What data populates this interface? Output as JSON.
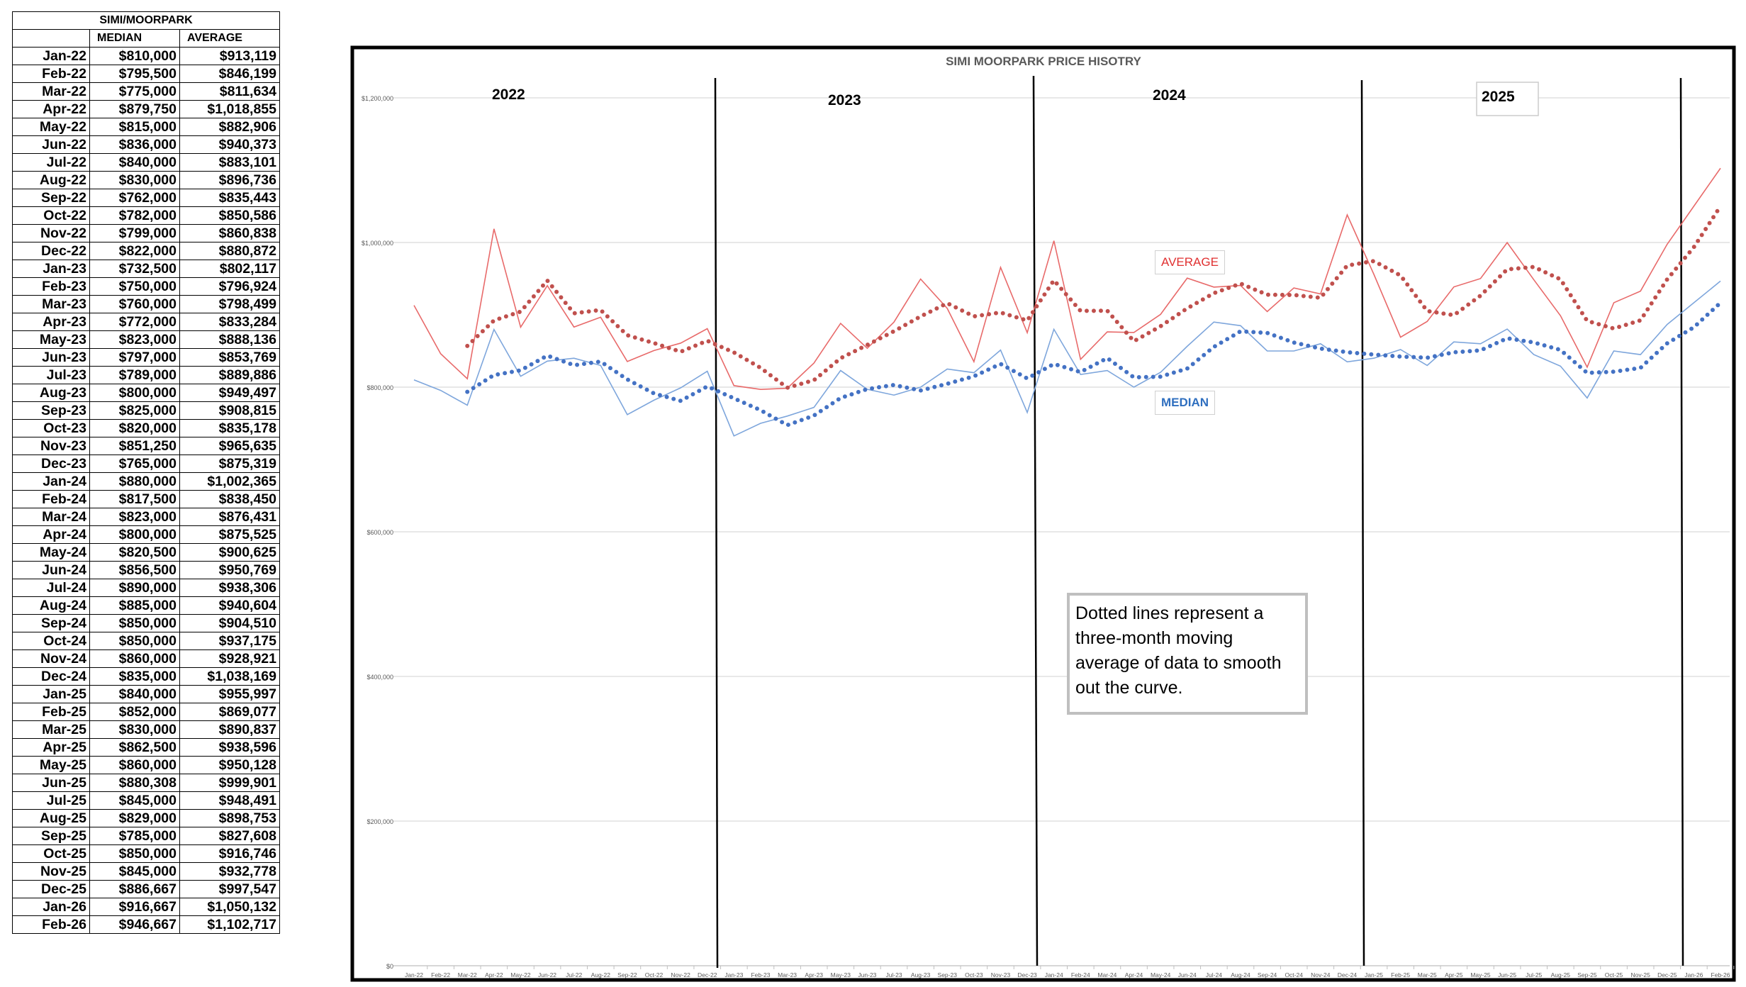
{
  "table": {
    "title": "SIMI/MOORPARK",
    "headers": [
      "",
      "MEDIAN",
      "AVERAGE"
    ],
    "rows": [
      [
        "Jan-22",
        "$810,000",
        "$913,119"
      ],
      [
        "Feb-22",
        "$795,500",
        "$846,199"
      ],
      [
        "Mar-22",
        "$775,000",
        "$811,634"
      ],
      [
        "Apr-22",
        "$879,750",
        "$1,018,855"
      ],
      [
        "May-22",
        "$815,000",
        "$882,906"
      ],
      [
        "Jun-22",
        "$836,000",
        "$940,373"
      ],
      [
        "Jul-22",
        "$840,000",
        "$883,101"
      ],
      [
        "Aug-22",
        "$830,000",
        "$896,736"
      ],
      [
        "Sep-22",
        "$762,000",
        "$835,443"
      ],
      [
        "Oct-22",
        "$782,000",
        "$850,586"
      ],
      [
        "Nov-22",
        "$799,000",
        "$860,838"
      ],
      [
        "Dec-22",
        "$822,000",
        "$880,872"
      ],
      [
        "Jan-23",
        "$732,500",
        "$802,117"
      ],
      [
        "Feb-23",
        "$750,000",
        "$796,924"
      ],
      [
        "Mar-23",
        "$760,000",
        "$798,499"
      ],
      [
        "Apr-23",
        "$772,000",
        "$833,284"
      ],
      [
        "May-23",
        "$823,000",
        "$888,136"
      ],
      [
        "Jun-23",
        "$797,000",
        "$853,769"
      ],
      [
        "Jul-23",
        "$789,000",
        "$889,886"
      ],
      [
        "Aug-23",
        "$800,000",
        "$949,497"
      ],
      [
        "Sep-23",
        "$825,000",
        "$908,815"
      ],
      [
        "Oct-23",
        "$820,000",
        "$835,178"
      ],
      [
        "Nov-23",
        "$851,250",
        "$965,635"
      ],
      [
        "Dec-23",
        "$765,000",
        "$875,319"
      ],
      [
        "Jan-24",
        "$880,000",
        "$1,002,365"
      ],
      [
        "Feb-24",
        "$817,500",
        "$838,450"
      ],
      [
        "Mar-24",
        "$823,000",
        "$876,431"
      ],
      [
        "Apr-24",
        "$800,000",
        "$875,525"
      ],
      [
        "May-24",
        "$820,500",
        "$900,625"
      ],
      [
        "Jun-24",
        "$856,500",
        "$950,769"
      ],
      [
        "Jul-24",
        "$890,000",
        "$938,306"
      ],
      [
        "Aug-24",
        "$885,000",
        "$940,604"
      ],
      [
        "Sep-24",
        "$850,000",
        "$904,510"
      ],
      [
        "Oct-24",
        "$850,000",
        "$937,175"
      ],
      [
        "Nov-24",
        "$860,000",
        "$928,921"
      ],
      [
        "Dec-24",
        "$835,000",
        "$1,038,169"
      ],
      [
        "Jan-25",
        "$840,000",
        "$955,997"
      ],
      [
        "Feb-25",
        "$852,000",
        "$869,077"
      ],
      [
        "Mar-25",
        "$830,000",
        "$890,837"
      ],
      [
        "Apr-25",
        "$862,500",
        "$938,596"
      ],
      [
        "May-25",
        "$860,000",
        "$950,128"
      ],
      [
        "Jun-25",
        "$880,308",
        "$999,901"
      ],
      [
        "Jul-25",
        "$845,000",
        "$948,491"
      ],
      [
        "Aug-25",
        "$829,000",
        "$898,753"
      ],
      [
        "Sep-25",
        "$785,000",
        "$827,608"
      ],
      [
        "Oct-25",
        "$850,000",
        "$916,746"
      ],
      [
        "Nov-25",
        "$845,000",
        "$932,778"
      ],
      [
        "Dec-25",
        "$886,667",
        "$997,547"
      ],
      [
        "Jan-26",
        "$916,667",
        "$1,050,132"
      ],
      [
        "Feb-26",
        "$946,667",
        "$1,102,717"
      ]
    ]
  },
  "chart_data": {
    "type": "line",
    "title": "SIMI MOORPARK PRICE HISOTRY",
    "x": [
      "Jan-22",
      "Feb-22",
      "Mar-22",
      "Apr-22",
      "May-22",
      "Jun-22",
      "Jul-22",
      "Aug-22",
      "Sep-22",
      "Oct-22",
      "Nov-22",
      "Dec-22",
      "Jan-23",
      "Feb-23",
      "Mar-23",
      "Apr-23",
      "May-23",
      "Jun-23",
      "Jul-23",
      "Aug-23",
      "Sep-23",
      "Oct-23",
      "Nov-23",
      "Dec-23",
      "Jan-24",
      "Feb-24",
      "Mar-24",
      "Apr-24",
      "May-24",
      "Jun-24",
      "Jul-24",
      "Aug-24",
      "Sep-24",
      "Oct-24",
      "Nov-24",
      "Dec-24",
      "Jan-25",
      "Feb-25",
      "Mar-25",
      "Apr-25",
      "May-25",
      "Jun-25",
      "Jul-25",
      "Aug-25",
      "Sep-25",
      "Oct-25",
      "Nov-25",
      "Dec-25",
      "Jan-26",
      "Feb-26"
    ],
    "series": [
      {
        "name": "MEDIAN",
        "color": "#4472c4",
        "values": [
          810000,
          795500,
          775000,
          879750,
          815000,
          836000,
          840000,
          830000,
          762000,
          782000,
          799000,
          822000,
          732500,
          750000,
          760000,
          772000,
          823000,
          797000,
          789000,
          800000,
          825000,
          820000,
          851250,
          765000,
          880000,
          817500,
          823000,
          800000,
          820500,
          856500,
          890000,
          885000,
          850000,
          850000,
          860000,
          835000,
          840000,
          852000,
          830000,
          862500,
          860000,
          880308,
          845000,
          829000,
          785000,
          850000,
          845000,
          886667,
          916667,
          946667
        ]
      },
      {
        "name": "AVERAGE",
        "color": "#c0504d",
        "values": [
          913119,
          846199,
          811634,
          1018855,
          882906,
          940373,
          883101,
          896736,
          835443,
          850586,
          860838,
          880872,
          802117,
          796924,
          798499,
          833284,
          888136,
          853769,
          889886,
          949497,
          908815,
          835178,
          965635,
          875319,
          1002365,
          838450,
          876431,
          875525,
          900625,
          950769,
          938306,
          940604,
          904510,
          937175,
          928921,
          1038169,
          955997,
          869077,
          890837,
          938596,
          950128,
          999901,
          948491,
          898753,
          827608,
          916746,
          932778,
          997547,
          1050132,
          1102717
        ]
      }
    ],
    "trendline": "3-month moving average (dotted)",
    "yticks": [
      "$0",
      "$200,000",
      "$400,000",
      "$600,000",
      "$800,000",
      "$1,000,000",
      "$1,200,000"
    ],
    "ylim": [
      0,
      1200000
    ],
    "grid": true,
    "year_labels": [
      "2022",
      "2023",
      "2024",
      "2025"
    ],
    "series_labels": {
      "average": "AVERAGE",
      "median": "MEDIAN"
    },
    "note": "Dotted lines represent a three-month moving average of data to smooth out the curve."
  }
}
